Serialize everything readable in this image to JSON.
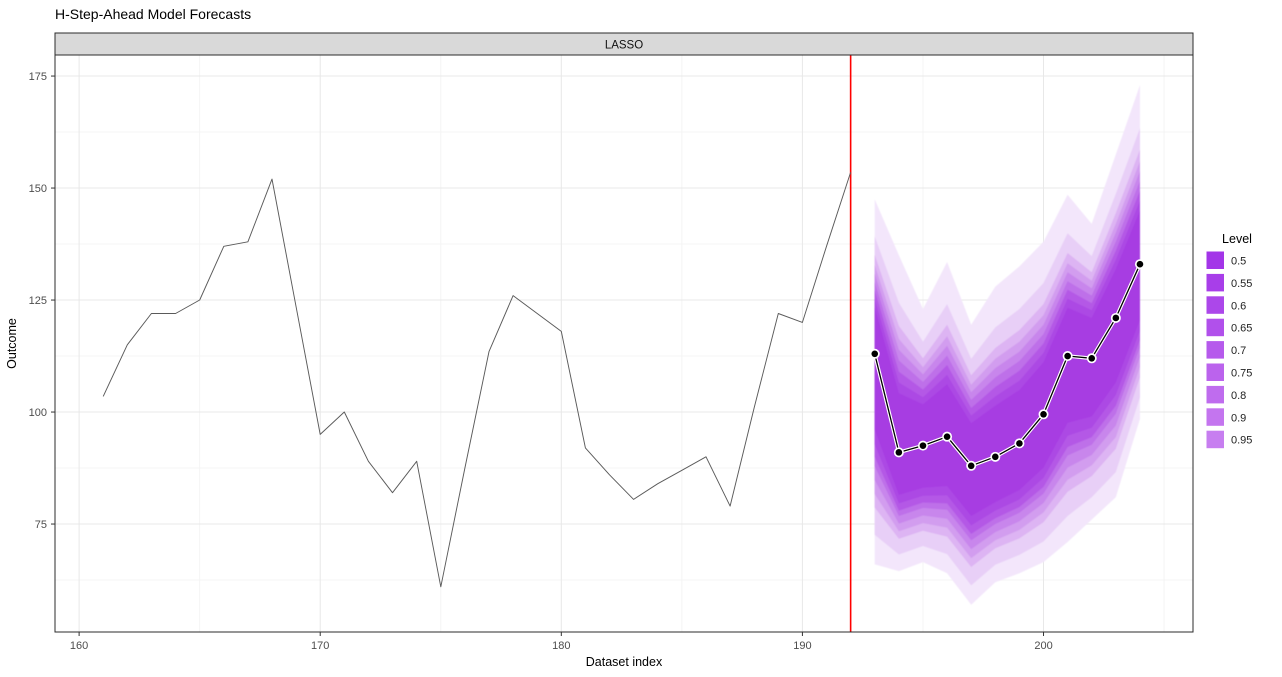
{
  "title": "H-Step-Ahead Model Forecasts",
  "facet_label": "LASSO",
  "axes": {
    "x_title": "Dataset index",
    "y_title": "Outcome",
    "x_ticks": [
      160,
      170,
      180,
      190,
      200
    ],
    "x_minor": [
      165,
      175,
      185,
      195,
      205
    ],
    "y_ticks": [
      75,
      100,
      125,
      150,
      175
    ],
    "y_minor": [
      62.5,
      87.5,
      112.5,
      137.5,
      162.5
    ],
    "xlim": [
      159.0,
      206.2
    ],
    "ylim": [
      50.9,
      179.7
    ]
  },
  "legend": {
    "title": "Level",
    "entries": [
      {
        "level": "0.5",
        "color": "#A335E8"
      },
      {
        "level": "0.55",
        "color": "#A83EE9"
      },
      {
        "level": "0.6",
        "color": "#AC47EA"
      },
      {
        "level": "0.65",
        "color": "#B150EB"
      },
      {
        "level": "0.7",
        "color": "#B65AEC"
      },
      {
        "level": "0.75",
        "color": "#BB63ED"
      },
      {
        "level": "0.8",
        "color": "#BF6CEE"
      },
      {
        "level": "0.9",
        "color": "#C475EF"
      },
      {
        "level": "0.95",
        "color": "#C77EF0"
      }
    ]
  },
  "colors": {
    "history_line": "#5A5A5A",
    "forecast_line": "#000000",
    "marker_fill": "#000000",
    "marker_ring": "#FFFFFF",
    "cutoff_line": "#FF0000",
    "strip_bg": "#D9D9D9",
    "strip_border": "#2B2B2B",
    "panel_border": "#2B2B2B",
    "grid_major": "#E8E8E8",
    "grid_minor": "#F4F4F4",
    "tick_mark": "#333333",
    "tick_label": "#4D4D4D",
    "band_fills": {
      "0.5": "#A73CE2",
      "0.55": "#AC48E4",
      "0.6": "#B459E6",
      "0.65": "#BE6FE9",
      "0.7": "#C886EC",
      "0.75": "#D29DEF",
      "0.8": "#DDB4F3",
      "0.9": "#E8CFF7",
      "0.95": "#F3E6FB"
    }
  },
  "chart_data": {
    "type": "line+fan",
    "title": "H-Step-Ahead Model Forecasts",
    "facet": "LASSO",
    "xlabel": "Dataset index",
    "ylabel": "Outcome",
    "legend_title": "Level",
    "cutoff_x": 192,
    "history": {
      "x": [
        161,
        162,
        163,
        164,
        165,
        166,
        167,
        168,
        169,
        170,
        171,
        172,
        173,
        174,
        175,
        176,
        177,
        178,
        179,
        180,
        181,
        182,
        183,
        184,
        185,
        186,
        187,
        188,
        189,
        190,
        191,
        192
      ],
      "y": [
        103.5,
        115,
        122,
        122,
        125,
        137,
        138,
        152,
        123.5,
        95,
        100,
        89,
        82,
        89,
        61,
        87.5,
        113.5,
        126,
        122,
        118,
        92,
        86,
        80.5,
        84,
        87,
        90,
        79,
        101,
        122,
        120,
        137,
        153.5
      ]
    },
    "forecast": {
      "x": [
        193,
        194,
        195,
        196,
        197,
        198,
        199,
        200,
        201,
        202,
        203,
        204
      ],
      "median": [
        113,
        91,
        92.5,
        94.5,
        88,
        90,
        93,
        99.5,
        112.5,
        112,
        121,
        133
      ],
      "levels": [
        {
          "level": "0.5",
          "upper": [
            123.4,
            104.2,
            101.7,
            106.2,
            97.5,
            101.4,
            104.9,
            111.1,
            123.3,
            121.0,
            131.9,
            145.0
          ],
          "lower": [
            96.1,
            81.5,
            83.1,
            83.5,
            76.8,
            79.9,
            82.6,
            87.6,
            97.6,
            99.0,
            106.6,
            120.6
          ]
        },
        {
          "level": "0.55",
          "upper": [
            125.3,
            106.6,
            103.3,
            108.3,
            99.2,
            103.5,
            107.0,
            113.2,
            125.3,
            122.7,
            134.0,
            147.2
          ],
          "lower": [
            92.8,
            79.6,
            81.3,
            81.4,
            74.7,
            78.0,
            80.5,
            85.3,
            94.7,
            96.5,
            103.8,
            118.2
          ]
        },
        {
          "level": "0.6",
          "upper": [
            127.2,
            109.0,
            105.0,
            110.5,
            100.9,
            105.6,
            109.2,
            115.3,
            127.3,
            124.3,
            136.0,
            149.4
          ],
          "lower": [
            90.0,
            78.0,
            79.8,
            79.6,
            72.8,
            76.3,
            78.8,
            83.3,
            92.2,
            94.4,
            101.4,
            116.1
          ]
        },
        {
          "level": "0.65",
          "upper": [
            129.0,
            111.5,
            106.7,
            112.6,
            102.7,
            107.7,
            111.4,
            117.4,
            129.2,
            126.0,
            138.0,
            151.6
          ],
          "lower": [
            87.9,
            76.8,
            78.6,
            78.2,
            71.4,
            75.0,
            77.5,
            81.8,
            90.3,
            92.7,
            99.6,
            114.5
          ]
        },
        {
          "level": "0.7",
          "upper": [
            130.9,
            113.9,
            108.4,
            114.8,
            104.4,
            109.8,
            113.5,
            119.5,
            131.2,
            127.6,
            140.0,
            153.8
          ],
          "lower": [
            84.8,
            75.1,
            76.9,
            76.2,
            69.4,
            73.2,
            75.6,
            79.7,
            87.6,
            90.4,
            97.0,
            112.3
          ]
        },
        {
          "level": "0.75",
          "upper": [
            132.8,
            116.3,
            110.0,
            116.9,
            106.1,
            111.9,
            115.7,
            121.6,
            133.2,
            129.3,
            142.0,
            156.0
          ],
          "lower": [
            81.7,
            73.4,
            75.2,
            74.2,
            67.4,
            71.4,
            73.7,
            77.6,
            84.9,
            88.1,
            94.4,
            110.1
          ]
        },
        {
          "level": "0.8",
          "upper": [
            135.1,
            119.2,
            112.0,
            119.5,
            108.2,
            114.3,
            118.3,
            124.1,
            135.5,
            131.2,
            144.4,
            158.6
          ],
          "lower": [
            78.7,
            71.7,
            73.5,
            72.2,
            65.4,
            69.6,
            71.8,
            75.4,
            82.2,
            85.7,
            91.8,
            107.8
          ]
        },
        {
          "level": "0.9",
          "upper": [
            139.2,
            124.4,
            115.7,
            124.1,
            111.9,
            118.9,
            123.0,
            128.8,
            139.9,
            134.8,
            148.7,
            163.4
          ],
          "lower": [
            72.6,
            68.2,
            70.1,
            68.3,
            61.3,
            65.9,
            68.1,
            71.1,
            76.8,
            81.0,
            86.6,
            103.3
          ]
        },
        {
          "level": "0.95",
          "upper": [
            147.5,
            135,
            123,
            133.5,
            119.5,
            128,
            132.5,
            138,
            148.5,
            142,
            157.5,
            173
          ],
          "lower": [
            66,
            64.5,
            66.5,
            64,
            57,
            62,
            64,
            66.5,
            71,
            76,
            81,
            98.5
          ]
        }
      ]
    }
  }
}
